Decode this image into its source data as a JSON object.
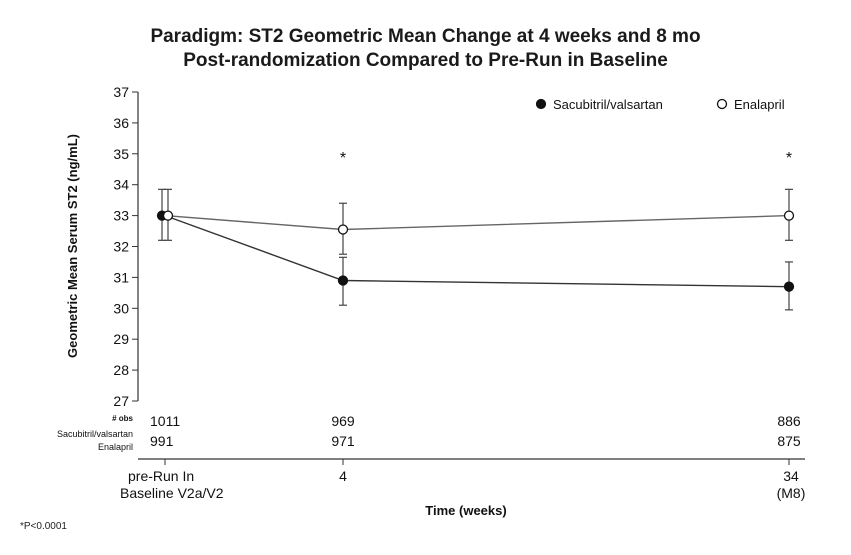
{
  "chart_data": {
    "type": "line",
    "title": [
      "Paradigm: ST2 Geometric Mean Change at 4 weeks and 8 mo",
      "Post-randomization Compared to Pre-Run in Baseline"
    ],
    "xlabel": "Time (weeks)",
    "ylabel": "Geometric Mean Serum ST2 (ng/mL)",
    "ylim": [
      27,
      37
    ],
    "yticks": [
      "27",
      "28",
      "29",
      "30",
      "31",
      "32",
      "33",
      "34",
      "35",
      "36",
      "37"
    ],
    "x_positions": [
      0,
      1,
      2
    ],
    "x_ticks": [
      {
        "lines": [
          "pre-Run In",
          "Baseline V2a/V2"
        ]
      },
      {
        "lines": [
          "4"
        ]
      },
      {
        "lines": [
          "34",
          "(M8)"
        ]
      }
    ],
    "series": [
      {
        "name": "Sacubitril/valsartan",
        "marker": "filled",
        "values": [
          33.0,
          30.9,
          30.7
        ],
        "ci_low": [
          32.2,
          30.1,
          29.95
        ],
        "ci_high": [
          33.85,
          31.65,
          31.5
        ]
      },
      {
        "name": "Enalapril",
        "marker": "open",
        "values": [
          33.0,
          32.55,
          33.0
        ],
        "ci_low": [
          32.2,
          31.75,
          32.2
        ],
        "ci_high": [
          33.85,
          33.4,
          33.85
        ]
      }
    ],
    "significance_markers": [
      {
        "x_index": 1,
        "label": "*"
      },
      {
        "x_index": 2,
        "label": "*"
      }
    ],
    "obs_table": {
      "header": "# obs",
      "rows": [
        {
          "label": "Sacubitril/valsartan",
          "values": [
            "1011",
            "969",
            "886"
          ]
        },
        {
          "label": "Enalapril",
          "values": [
            "991",
            "971",
            "875"
          ]
        }
      ]
    },
    "footnote": "*P<0.0001",
    "legend_position": "top-right"
  }
}
